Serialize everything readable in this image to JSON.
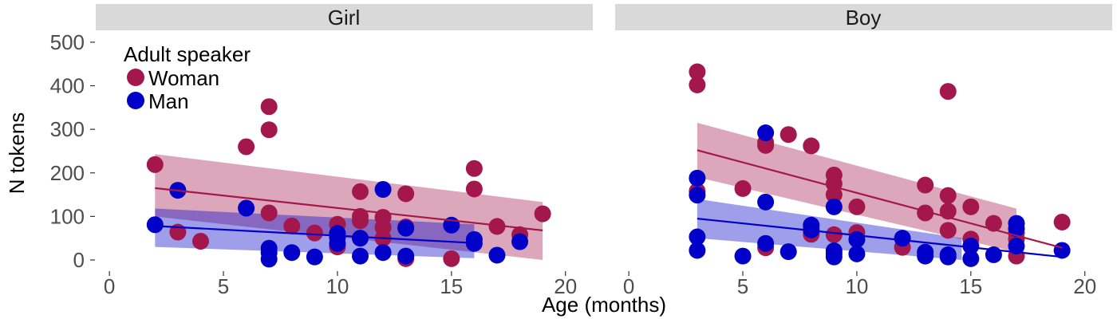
{
  "chart_data": {
    "type": "scatter",
    "xlabel": "Age (months)",
    "ylabel": "N tokens",
    "xlim": [
      -0.6,
      21.2
    ],
    "ylim": [
      -22,
      520
    ],
    "x_ticks": [
      0,
      5,
      10,
      15,
      20
    ],
    "y_ticks": [
      0,
      100,
      200,
      300,
      400,
      500
    ],
    "legend": {
      "title": "Adult speaker",
      "placement": "top-left",
      "entries": [
        {
          "label": "Woman",
          "color": "#A3174D"
        },
        {
          "label": "Man",
          "color": "#0000C8"
        }
      ]
    },
    "panels": [
      {
        "strip": "Girl",
        "series": [
          {
            "name": "Woman",
            "color": "#A3174D",
            "points": [
              [
                2,
                219
              ],
              [
                3,
                64
              ],
              [
                4,
                43
              ],
              [
                6,
                260
              ],
              [
                7,
                352
              ],
              [
                7,
                299
              ],
              [
                7,
                108
              ],
              [
                8,
                78
              ],
              [
                9,
                62
              ],
              [
                10,
                82
              ],
              [
                10,
                30
              ],
              [
                11,
                157
              ],
              [
                11,
                100
              ],
              [
                11,
                90
              ],
              [
                12,
                98
              ],
              [
                12,
                75
              ],
              [
                12,
                50
              ],
              [
                13,
                152
              ],
              [
                13,
                76
              ],
              [
                13,
                3
              ],
              [
                15,
                3
              ],
              [
                16,
                210
              ],
              [
                16,
                163
              ],
              [
                17,
                77
              ],
              [
                18,
                58
              ],
              [
                19,
                106
              ]
            ],
            "fit": {
              "x": [
                2,
                19
              ],
              "y": [
                165,
                68
              ]
            },
            "band": {
              "x": [
                2,
                19
              ],
              "upper": [
                243,
                133
              ],
              "lower": [
                100,
                0
              ]
            }
          },
          {
            "name": "Man",
            "color": "#0000C8",
            "points": [
              [
                2,
                81
              ],
              [
                3,
                160
              ],
              [
                6,
                119
              ],
              [
                7,
                27
              ],
              [
                7,
                17
              ],
              [
                7,
                2
              ],
              [
                8,
                17
              ],
              [
                9,
                7
              ],
              [
                10,
                61
              ],
              [
                10,
                52
              ],
              [
                10,
                38
              ],
              [
                11,
                50
              ],
              [
                11,
                9
              ],
              [
                12,
                162
              ],
              [
                12,
                17
              ],
              [
                13,
                73
              ],
              [
                13,
                9
              ],
              [
                15,
                80
              ],
              [
                16,
                47
              ],
              [
                16,
                38
              ],
              [
                17,
                11
              ],
              [
                18,
                42
              ]
            ],
            "fit": {
              "x": [
                2,
                16
              ],
              "y": [
                78,
                39
              ]
            },
            "band": {
              "x": [
                2,
                16
              ],
              "upper": [
                118,
                82
              ],
              "lower": [
                30,
                4
              ]
            }
          }
        ]
      },
      {
        "strip": "Boy",
        "series": [
          {
            "name": "Woman",
            "color": "#A3174D",
            "points": [
              [
                3,
                432
              ],
              [
                3,
                402
              ],
              [
                3,
                158
              ],
              [
                5,
                164
              ],
              [
                6,
                270
              ],
              [
                6,
                263
              ],
              [
                6,
                28
              ],
              [
                7,
                288
              ],
              [
                8,
                262
              ],
              [
                8,
                59
              ],
              [
                9,
                195
              ],
              [
                9,
                175
              ],
              [
                9,
                150
              ],
              [
                9,
                58
              ],
              [
                10,
                122
              ],
              [
                10,
                63
              ],
              [
                12,
                29
              ],
              [
                13,
                172
              ],
              [
                13,
                108
              ],
              [
                14,
                387
              ],
              [
                14,
                148
              ],
              [
                14,
                112
              ],
              [
                14,
                68
              ],
              [
                15,
                122
              ],
              [
                15,
                48
              ],
              [
                16,
                84
              ],
              [
                17,
                62
              ],
              [
                17,
                48
              ],
              [
                17,
                9
              ],
              [
                19,
                87
              ]
            ],
            "fit": {
              "x": [
                3,
                19
              ],
              "y": [
                252,
                28
              ]
            },
            "band": {
              "x": [
                3,
                17
              ],
              "upper": [
                315,
                118
              ],
              "lower": [
                190,
                18
              ]
            }
          },
          {
            "name": "Man",
            "color": "#0000C8",
            "points": [
              [
                3,
                188
              ],
              [
                3,
                149
              ],
              [
                3,
                53
              ],
              [
                3,
                22
              ],
              [
                5,
                9
              ],
              [
                6,
                292
              ],
              [
                6,
                133
              ],
              [
                6,
                38
              ],
              [
                7,
                19
              ],
              [
                8,
                80
              ],
              [
                8,
                69
              ],
              [
                9,
                122
              ],
              [
                9,
                21
              ],
              [
                9,
                14
              ],
              [
                9,
                7
              ],
              [
                10,
                47
              ],
              [
                10,
                14
              ],
              [
                12,
                50
              ],
              [
                13,
                18
              ],
              [
                13,
                9
              ],
              [
                14,
                12
              ],
              [
                14,
                7
              ],
              [
                15,
                32
              ],
              [
                15,
                3
              ],
              [
                16,
                12
              ],
              [
                17,
                84
              ],
              [
                17,
                72
              ],
              [
                17,
                32
              ],
              [
                19,
                22
              ]
            ],
            "fit": {
              "x": [
                3,
                19
              ],
              "y": [
                95,
                7
              ]
            },
            "band": {
              "x": [
                3,
                14.6
              ],
              "upper": [
                140,
                50
              ],
              "lower": [
                50,
                0
              ]
            }
          }
        ]
      }
    ]
  }
}
